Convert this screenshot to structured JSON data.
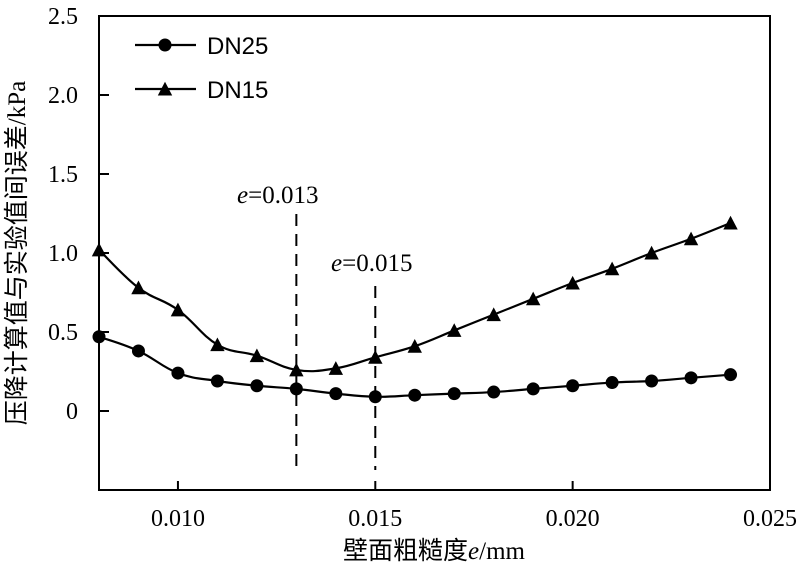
{
  "chart_data": {
    "type": "line",
    "xlabel": "壁面粗糙度e/mm",
    "xlabel_parts": {
      "before": "壁面粗糙度",
      "italic": "e",
      "after": "/mm"
    },
    "ylabel": "压降计算值与实验值间误差/kPa",
    "xlim": [
      0.008,
      0.025
    ],
    "ylim": [
      -0.5,
      2.5
    ],
    "x_ticks": [
      0.01,
      0.015,
      0.02,
      0.025
    ],
    "x_tick_labels": [
      "0.010",
      "0.015",
      "0.020",
      "0.025"
    ],
    "y_ticks": [
      0,
      0.5,
      1.0,
      1.5,
      2.0,
      2.5
    ],
    "y_tick_labels": [
      "0",
      "0.5",
      "1.0",
      "1.5",
      "2.0",
      "2.5"
    ],
    "grid": false,
    "legend_position": "top-left",
    "series": [
      {
        "name": "DN25",
        "marker": "circle",
        "x": [
          0.008,
          0.009,
          0.01,
          0.011,
          0.012,
          0.013,
          0.014,
          0.015,
          0.016,
          0.017,
          0.018,
          0.019,
          0.02,
          0.021,
          0.022,
          0.023,
          0.024
        ],
        "values": [
          0.47,
          0.38,
          0.24,
          0.19,
          0.16,
          0.14,
          0.11,
          0.09,
          0.1,
          0.11,
          0.12,
          0.14,
          0.16,
          0.18,
          0.19,
          0.21,
          0.23
        ]
      },
      {
        "name": "DN15",
        "marker": "triangle",
        "x": [
          0.008,
          0.009,
          0.01,
          0.011,
          0.012,
          0.013,
          0.014,
          0.015,
          0.016,
          0.017,
          0.018,
          0.019,
          0.02,
          0.021,
          0.022,
          0.023,
          0.024
        ],
        "values": [
          1.02,
          0.78,
          0.64,
          0.42,
          0.35,
          0.26,
          0.27,
          0.34,
          0.41,
          0.51,
          0.61,
          0.71,
          0.81,
          0.9,
          1.0,
          1.09,
          1.19
        ]
      }
    ],
    "annotations": [
      {
        "x": 0.013,
        "label_italic": "e",
        "label_rest": "=0.013"
      },
      {
        "x": 0.015,
        "label_italic": "e",
        "label_rest": "=0.015"
      }
    ]
  }
}
